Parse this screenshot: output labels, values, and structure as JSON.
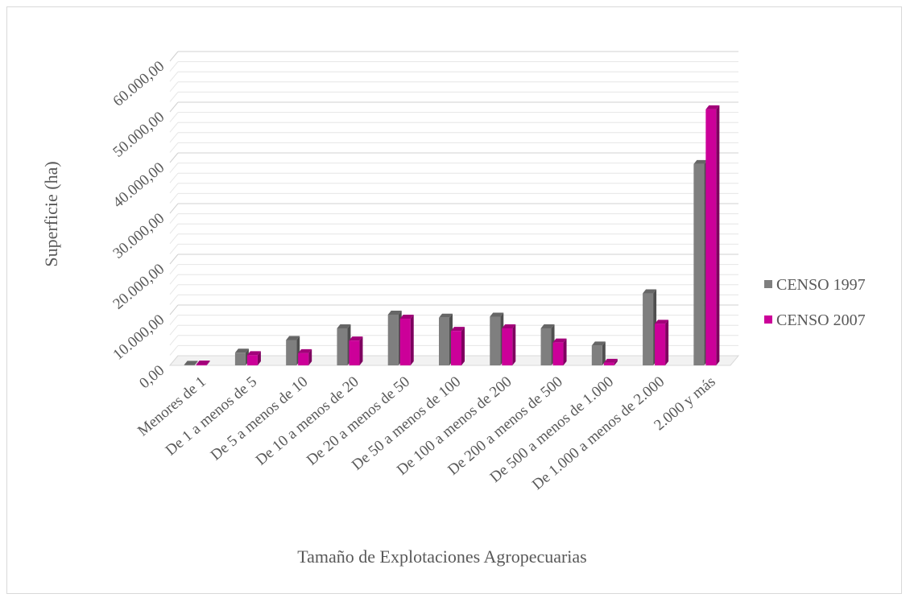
{
  "chart_data": {
    "type": "bar",
    "title": "",
    "xlabel": "Tamaño de Explotaciones Agropecuarias",
    "ylabel": "Superficie (ha)",
    "ylim": [
      0,
      60000
    ],
    "yticks": [
      "0,00",
      "10.000,00",
      "20.000,00",
      "30.000,00",
      "40.000,00",
      "50.000,00",
      "60.000,00"
    ],
    "grid": true,
    "legend_position": "right",
    "categories": [
      "Menores de 1",
      "De 1 a menos de 5",
      "De 5 a menos de 10",
      "De 10 a menos de 20",
      "De 20 a menos de 50",
      "De 50 a menos de 100",
      "De 100 a menos de 200",
      "De 200 a menos de 500",
      "De 500 a menos de 1.000",
      "De 1.000 a menos de 2.000",
      "2.000 y más"
    ],
    "series": [
      {
        "name": "CENSO 1997",
        "color": "#7f7f7f",
        "values": [
          100,
          2500,
          5000,
          7300,
          10000,
          9400,
          9600,
          7300,
          3900,
          14200,
          39700
        ]
      },
      {
        "name": "CENSO 2007",
        "color": "#cc0099",
        "values": [
          150,
          2000,
          2400,
          4900,
          9200,
          6800,
          7300,
          4500,
          500,
          8200,
          50500
        ]
      }
    ]
  }
}
